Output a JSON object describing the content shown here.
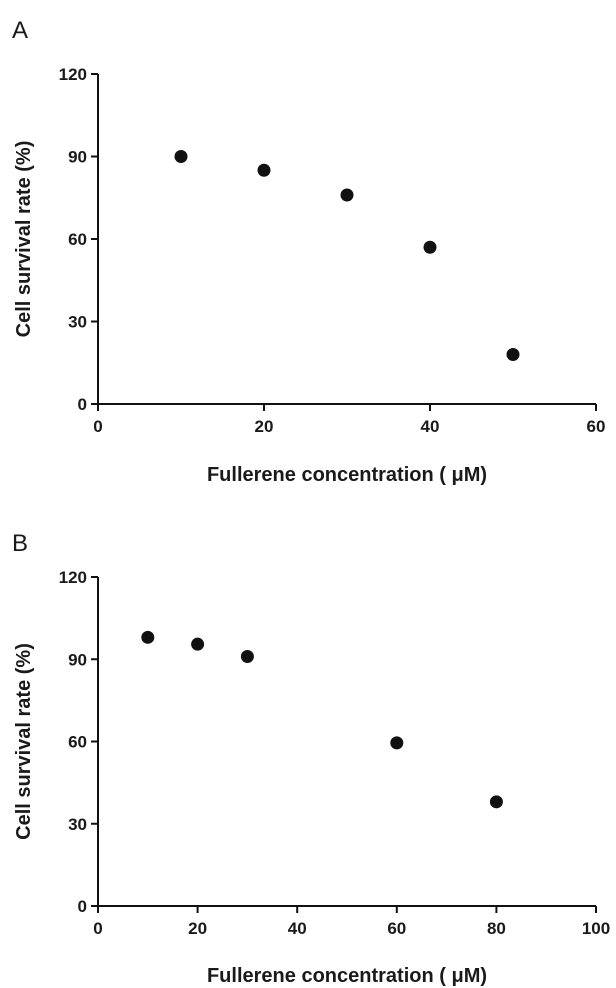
{
  "chart_data": [
    {
      "panel_label": "A",
      "type": "scatter",
      "xlabel": "Fullerene concentration ( μM)",
      "ylabel": "Cell survival rate (%)",
      "xlim": [
        0,
        60
      ],
      "ylim": [
        0,
        120
      ],
      "xticks": [
        0,
        20,
        40,
        60
      ],
      "yticks": [
        0,
        30,
        60,
        90,
        120
      ],
      "points": [
        {
          "x": 10,
          "y": 90
        },
        {
          "x": 20,
          "y": 85
        },
        {
          "x": 30,
          "y": 76
        },
        {
          "x": 40,
          "y": 57
        },
        {
          "x": 50,
          "y": 18
        }
      ],
      "marker_color": "#111111",
      "grid": false
    },
    {
      "panel_label": "B",
      "type": "scatter",
      "xlabel": "Fullerene concentration ( μM)",
      "ylabel": "Cell survival rate (%)",
      "xlim": [
        0,
        100
      ],
      "ylim": [
        0,
        120
      ],
      "xticks": [
        0,
        20,
        40,
        60,
        80,
        100
      ],
      "yticks": [
        0,
        30,
        60,
        90,
        120
      ],
      "points": [
        {
          "x": 10,
          "y": 98
        },
        {
          "x": 20,
          "y": 95.5
        },
        {
          "x": 30,
          "y": 91
        },
        {
          "x": 60,
          "y": 59.5
        },
        {
          "x": 80,
          "y": 38
        }
      ],
      "marker_color": "#111111",
      "grid": false
    }
  ]
}
